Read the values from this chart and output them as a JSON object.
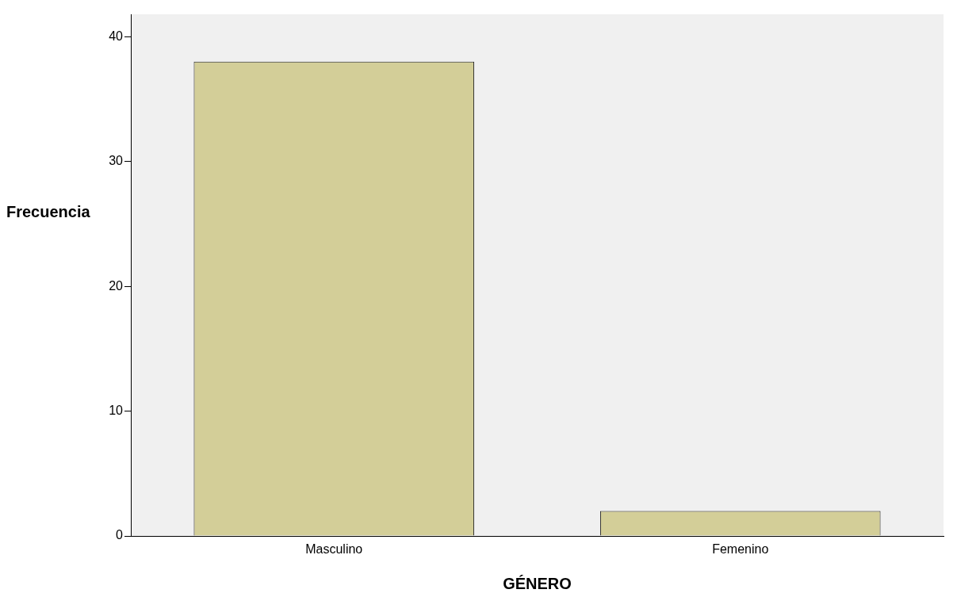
{
  "chart_data": {
    "type": "bar",
    "xlabel": "GÉNERO",
    "ylabel": "Frecuencia",
    "categories": [
      "Masculino",
      "Femenino"
    ],
    "values": [
      38,
      2
    ],
    "color": "#d3ce98",
    "ylim": [
      0,
      41.8
    ],
    "yticks": [
      0,
      10,
      20,
      30,
      40
    ],
    "grid": false,
    "legend": false
  }
}
